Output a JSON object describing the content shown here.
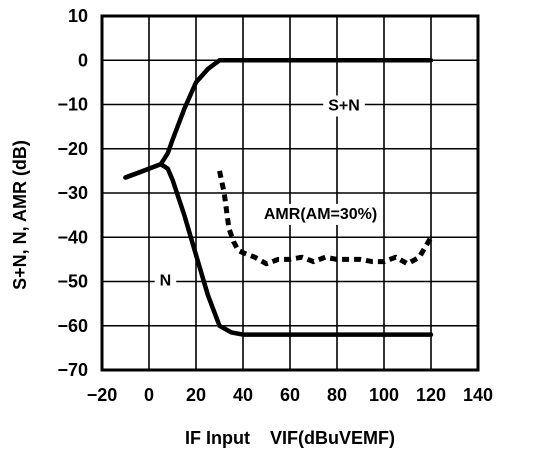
{
  "chart_data": {
    "type": "line",
    "xlabel": "IF Input    VIF(dBuVEMF)",
    "ylabel": "S+N, N, AMR (dB)",
    "xlim": [
      -20,
      140
    ],
    "ylim": [
      -70,
      10
    ],
    "x_ticks": [
      -20,
      0,
      20,
      40,
      60,
      80,
      100,
      120,
      140
    ],
    "y_ticks": [
      10,
      0,
      -10,
      -20,
      -30,
      -40,
      -50,
      -60,
      -70
    ],
    "grid": true,
    "series": [
      {
        "name": "S+N",
        "style": "solid",
        "x": [
          -10,
          -5,
          0,
          5,
          8,
          10,
          15,
          20,
          25,
          30,
          35,
          40,
          60,
          80,
          100,
          120
        ],
        "y": [
          -26.5,
          -25.5,
          -24.5,
          -23.5,
          -21,
          -18,
          -11,
          -5,
          -2,
          0,
          0,
          0,
          0,
          0,
          0,
          0
        ]
      },
      {
        "name": "N",
        "style": "solid",
        "x": [
          -10,
          -5,
          0,
          5,
          8,
          10,
          15,
          20,
          25,
          30,
          35,
          40,
          60,
          80,
          100,
          120
        ],
        "y": [
          -26.5,
          -25.5,
          -24.5,
          -23.5,
          -24.5,
          -27,
          -35,
          -44,
          -53,
          -60,
          -61.5,
          -62,
          -62,
          -62,
          -62,
          -62
        ]
      },
      {
        "name": "AMR(AM=30%)",
        "style": "dashed",
        "x": [
          30,
          32,
          34,
          36,
          38,
          40,
          45,
          50,
          55,
          60,
          65,
          70,
          75,
          80,
          85,
          90,
          95,
          100,
          105,
          110,
          115,
          120
        ],
        "y": [
          -25,
          -30,
          -38,
          -41,
          -43,
          -43.5,
          -44.5,
          -46,
          -45,
          -45,
          -44.5,
          -45.5,
          -44.5,
          -45,
          -45,
          -45,
          -45.5,
          -45.5,
          -44.5,
          -46,
          -44.5,
          -40
        ]
      }
    ],
    "annotations": [
      {
        "text": "S+N",
        "x": 83,
        "y": -10
      },
      {
        "text": "AMR(AM=30%)",
        "x": 73,
        "y": -34.5
      },
      {
        "text": "N",
        "x": 7,
        "y": -49.5
      }
    ],
    "colors": {
      "line": "#000000",
      "grid": "#000000",
      "background": "#ffffff"
    }
  }
}
